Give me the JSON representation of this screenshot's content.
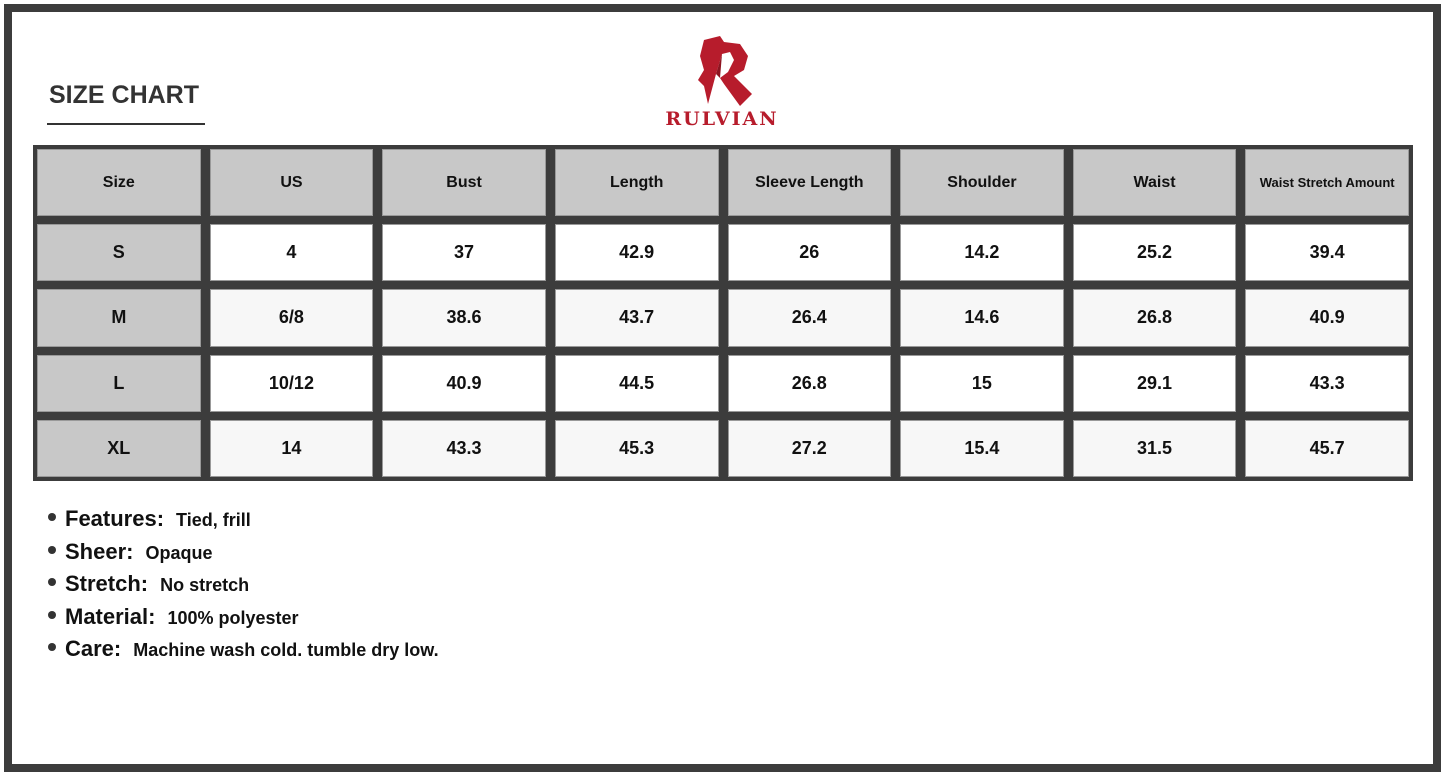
{
  "title": "SIZE CHART",
  "brand": {
    "name": "RULVIAN",
    "color": "#b71c2c"
  },
  "table": {
    "headers": [
      "Size",
      "US",
      "Bust",
      "Length",
      "Sleeve Length",
      "Shoulder",
      "Waist",
      "Waist Stretch Amount"
    ],
    "rows": [
      [
        "S",
        "4",
        "37",
        "42.9",
        "26",
        "14.2",
        "25.2",
        "39.4"
      ],
      [
        "M",
        "6/8",
        "38.6",
        "43.7",
        "26.4",
        "14.6",
        "26.8",
        "40.9"
      ],
      [
        "L",
        "10/12",
        "40.9",
        "44.5",
        "26.8",
        "15",
        "29.1",
        "43.3"
      ],
      [
        "XL",
        "14",
        "43.3",
        "45.3",
        "27.2",
        "15.4",
        "31.5",
        "45.7"
      ]
    ]
  },
  "notes": [
    {
      "label": "Features:",
      "value": "Tied, frill"
    },
    {
      "label": "Sheer:",
      "value": "Opaque"
    },
    {
      "label": "Stretch:",
      "value": "No stretch"
    },
    {
      "label": "Material:",
      "value": "100% polyester"
    },
    {
      "label": "Care:",
      "value": "Machine wash cold. tumble dry low."
    }
  ]
}
